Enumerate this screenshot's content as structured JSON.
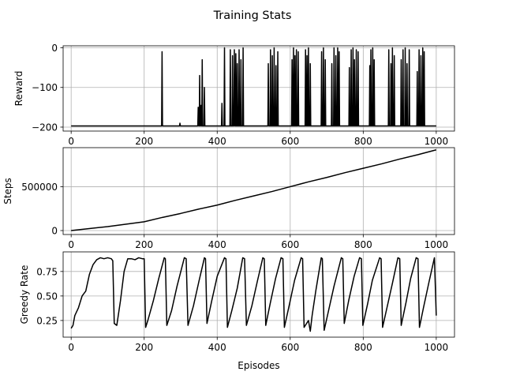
{
  "figure": {
    "title": "Training Stats"
  },
  "chart_data": [
    {
      "type": "line",
      "xlabel": "",
      "ylabel": "Reward",
      "xlim": [
        -22,
        1050
      ],
      "ylim": [
        -210,
        5
      ],
      "xticks": [
        0,
        200,
        400,
        600,
        800,
        1000
      ],
      "yticks": [
        0,
        -100,
        -200
      ],
      "ytick_labels": [
        "0",
        "−100",
        "−200"
      ],
      "grid": true,
      "series": [
        {
          "color": "#000000",
          "baseline": -197,
          "spikes": [
            [
              249,
              -10
            ],
            [
              298,
              -190
            ],
            [
              348,
              -150
            ],
            [
              352,
              -70
            ],
            [
              356,
              -145
            ],
            [
              359,
              -30
            ],
            [
              365,
              -100
            ],
            [
              413,
              -140
            ],
            [
              420,
              0
            ],
            [
              436,
              -5
            ],
            [
              442,
              -20
            ],
            [
              447,
              -5
            ],
            [
              451,
              -15
            ],
            [
              455,
              -40
            ],
            [
              460,
              -5
            ],
            [
              465,
              -30
            ],
            [
              471,
              0
            ],
            [
              540,
              -40
            ],
            [
              546,
              -5
            ],
            [
              551,
              -20
            ],
            [
              556,
              0
            ],
            [
              561,
              -45
            ],
            [
              566,
              -10
            ],
            [
              605,
              -30
            ],
            [
              609,
              0
            ],
            [
              613,
              -20
            ],
            [
              617,
              -5
            ],
            [
              622,
              -10
            ],
            [
              642,
              -5
            ],
            [
              646,
              -20
            ],
            [
              650,
              0
            ],
            [
              655,
              -40
            ],
            [
              686,
              -10
            ],
            [
              691,
              0
            ],
            [
              696,
              -30
            ],
            [
              714,
              -40
            ],
            [
              720,
              0
            ],
            [
              725,
              -20
            ],
            [
              730,
              0
            ],
            [
              734,
              -10
            ],
            [
              762,
              -50
            ],
            [
              767,
              -5
            ],
            [
              772,
              0
            ],
            [
              776,
              -30
            ],
            [
              781,
              -5
            ],
            [
              786,
              -10
            ],
            [
              818,
              -45
            ],
            [
              821,
              -5
            ],
            [
              826,
              0
            ],
            [
              830,
              -30
            ],
            [
              870,
              -5
            ],
            [
              876,
              -40
            ],
            [
              880,
              0
            ],
            [
              885,
              -20
            ],
            [
              904,
              -30
            ],
            [
              909,
              -5
            ],
            [
              915,
              0
            ],
            [
              920,
              -40
            ],
            [
              926,
              -5
            ],
            [
              948,
              -60
            ],
            [
              953,
              -5
            ],
            [
              958,
              -20
            ],
            [
              963,
              0
            ],
            [
              967,
              -10
            ]
          ]
        }
      ]
    },
    {
      "type": "line",
      "xlabel": "",
      "ylabel": "Steps",
      "xlim": [
        -22,
        1050
      ],
      "ylim": [
        -45000,
        945000
      ],
      "xticks": [
        0,
        200,
        400,
        600,
        800,
        1000
      ],
      "yticks": [
        0,
        500000
      ],
      "grid": true,
      "series": [
        {
          "color": "#000000",
          "x": [
            0,
            100,
            200,
            250,
            300,
            350,
            400,
            450,
            500,
            550,
            600,
            650,
            700,
            750,
            800,
            850,
            900,
            950,
            1000
          ],
          "y": [
            0,
            45000,
            100000,
            150000,
            195000,
            245000,
            290000,
            345000,
            395000,
            445000,
            500000,
            555000,
            605000,
            660000,
            710000,
            760000,
            815000,
            865000,
            920000
          ]
        }
      ]
    },
    {
      "type": "line",
      "xlabel": "Episodes",
      "ylabel": "Greedy Rate",
      "xlim": [
        -22,
        1050
      ],
      "ylim": [
        0.08,
        0.95
      ],
      "xticks": [
        0,
        200,
        400,
        600,
        800,
        1000
      ],
      "yticks": [
        0.25,
        0.5,
        0.75
      ],
      "ytick_labels": [
        "0.25",
        "0.50",
        "0.75"
      ],
      "grid": true,
      "series": [
        {
          "color": "#000000",
          "x": [
            0,
            5,
            10,
            20,
            30,
            40,
            50,
            60,
            70,
            80,
            90,
            100,
            110,
            114,
            118,
            125,
            135,
            145,
            155,
            165,
            175,
            185,
            195,
            200,
            204,
            210,
            225,
            240,
            255,
            258,
            262,
            275,
            290,
            310,
            315,
            320,
            335,
            350,
            365,
            368,
            372,
            385,
            400,
            420,
            424,
            428,
            440,
            455,
            470,
            475,
            480,
            495,
            510,
            525,
            529,
            533,
            545,
            560,
            575,
            580,
            584,
            597,
            612,
            630,
            634,
            638,
            650,
            655,
            660,
            670,
            685,
            688,
            693,
            705,
            720,
            740,
            744,
            748,
            760,
            775,
            790,
            795,
            799,
            812,
            825,
            845,
            849,
            853,
            865,
            880,
            895,
            900,
            904,
            917,
            930,
            945,
            950,
            954,
            965,
            980,
            995,
            1000
          ],
          "y": [
            0.17,
            0.2,
            0.3,
            0.38,
            0.5,
            0.55,
            0.72,
            0.82,
            0.87,
            0.89,
            0.88,
            0.89,
            0.88,
            0.86,
            0.22,
            0.2,
            0.45,
            0.75,
            0.88,
            0.88,
            0.87,
            0.89,
            0.88,
            0.88,
            0.18,
            0.25,
            0.45,
            0.68,
            0.89,
            0.88,
            0.2,
            0.35,
            0.6,
            0.89,
            0.88,
            0.2,
            0.4,
            0.65,
            0.89,
            0.88,
            0.22,
            0.45,
            0.7,
            0.89,
            0.88,
            0.18,
            0.35,
            0.58,
            0.89,
            0.88,
            0.2,
            0.4,
            0.65,
            0.89,
            0.88,
            0.2,
            0.42,
            0.68,
            0.89,
            0.88,
            0.18,
            0.4,
            0.66,
            0.89,
            0.88,
            0.18,
            0.25,
            0.14,
            0.3,
            0.55,
            0.89,
            0.88,
            0.15,
            0.35,
            0.6,
            0.89,
            0.88,
            0.22,
            0.45,
            0.7,
            0.89,
            0.88,
            0.2,
            0.42,
            0.66,
            0.89,
            0.88,
            0.18,
            0.38,
            0.63,
            0.89,
            0.88,
            0.2,
            0.43,
            0.68,
            0.89,
            0.88,
            0.18,
            0.38,
            0.64,
            0.89,
            0.3
          ]
        }
      ]
    }
  ]
}
